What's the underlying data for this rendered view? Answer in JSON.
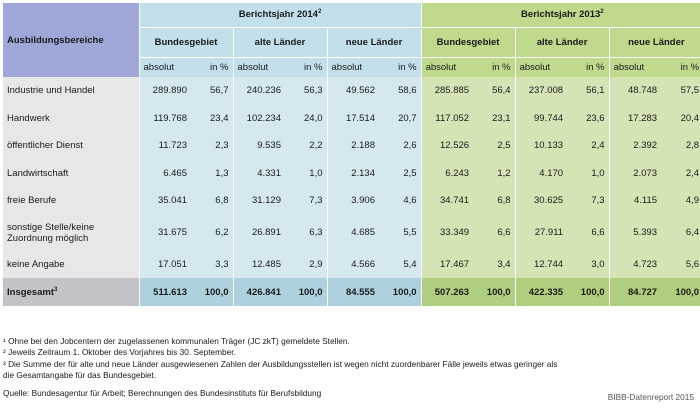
{
  "header": {
    "col_label": "Ausbildungsbereiche",
    "year2014": "Berichtsjahr 2014",
    "year2014_sup": "2",
    "year2013": "Berichtsjahr 2013",
    "year2013_sup": "2",
    "regions": [
      "Bundesgebiet",
      "alte Länder",
      "neue Länder"
    ],
    "absolut": "absolut",
    "percent": "in %"
  },
  "rows": [
    {
      "label": "Industrie und Handel",
      "v": [
        "289.890",
        "56,7",
        "240.236",
        "56,3",
        "49.562",
        "58,6",
        "285.885",
        "56,4",
        "237.008",
        "56,1",
        "48.748",
        "57,5"
      ]
    },
    {
      "label": "Handwerk",
      "v": [
        "119.768",
        "23,4",
        "102.234",
        "24,0",
        "17.514",
        "20,7",
        "117.052",
        "23,1",
        "99.744",
        "23,6",
        "17.283",
        "20,4"
      ]
    },
    {
      "label": "öffentlicher Dienst",
      "v": [
        "11.723",
        "2,3",
        "9.535",
        "2,2",
        "2.188",
        "2,6",
        "12.526",
        "2,5",
        "10.133",
        "2,4",
        "2.392",
        "2,8"
      ]
    },
    {
      "label": "Landwirtschaft",
      "v": [
        "6.465",
        "1,3",
        "4.331",
        "1,0",
        "2.134",
        "2,5",
        "6.243",
        "1,2",
        "4.170",
        "1,0",
        "2.073",
        "2,4"
      ]
    },
    {
      "label": "freie Berufe",
      "v": [
        "35.041",
        "6,8",
        "31.129",
        "7,3",
        "3.906",
        "4,6",
        "34.741",
        "6,8",
        "30.625",
        "7,3",
        "4.115",
        "4,9"
      ]
    },
    {
      "label": "sonstige Stelle/keine Zuordnung möglich",
      "v": [
        "31.675",
        "6,2",
        "26.891",
        "6,3",
        "4.685",
        "5,5",
        "33.349",
        "6,6",
        "27.911",
        "6,6",
        "5.393",
        "6,4"
      ]
    },
    {
      "label": "keine Angabe",
      "v": [
        "17.051",
        "3,3",
        "12.485",
        "2,9",
        "4.566",
        "5,4",
        "17.467",
        "3,4",
        "12.744",
        "3,0",
        "4.723",
        "5,6"
      ]
    }
  ],
  "total": {
    "label": "Insgesamt",
    "sup": "3",
    "v": [
      "511.613",
      "100,0",
      "426.841",
      "100,0",
      "84.555",
      "100,0",
      "507.263",
      "100,0",
      "422.335",
      "100,0",
      "84.727",
      "100,0"
    ]
  },
  "footnotes": [
    "¹ Ohne bei den Jobcentern der zugelassenen kommunalen Träger (JC zkT) gemeldete Stellen.",
    "² Jeweils Zeitraum 1. Oktober des Vorjahres bis 30. September.",
    "³ Die Summe der für alte und neue Länder ausgewiesenen Zahlen der Ausbildungsstellen ist wegen nicht zuordenbarer Fälle jeweils etwas geringer als",
    "die Gesamtangabe für das Bundesgebiet."
  ],
  "source": "Quelle: Bundesagentur für Arbeit; Berechnungen des Bundesinstituts für Berufsbildung",
  "credit": "BIBB-Datenreport 2015",
  "colors": {
    "category_header": "#9ea7d8",
    "year2014": "#c3e0ea",
    "year2013": "#bfd98d"
  }
}
